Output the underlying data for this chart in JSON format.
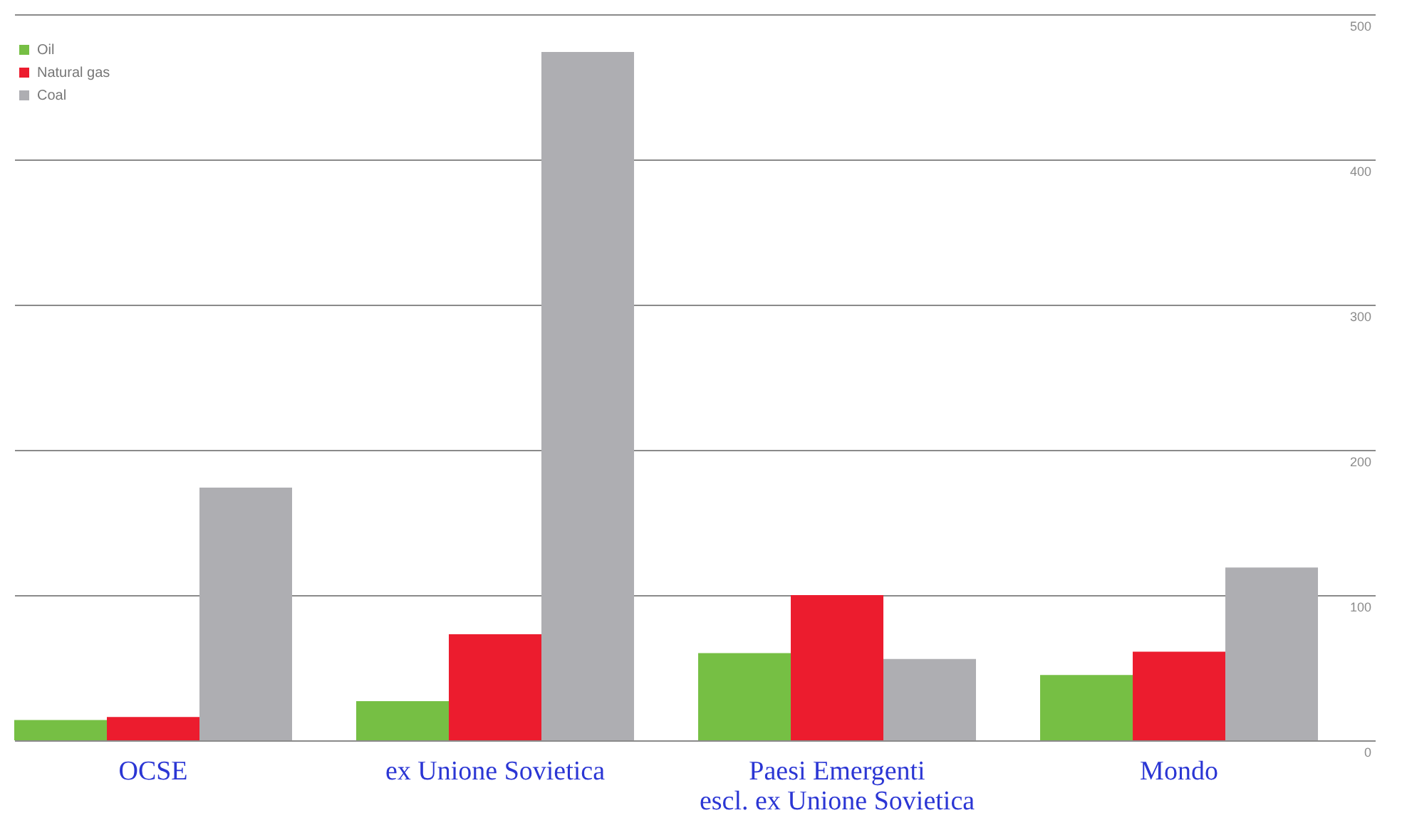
{
  "chart_data": {
    "type": "bar",
    "categories": [
      "OCSE",
      "ex Unione Sovietica",
      "Paesi Emergenti\nescl. ex Unione Sovietica",
      "Mondo"
    ],
    "series": [
      {
        "name": "Oil",
        "color": "#76bf44",
        "values": [
          14,
          27,
          60,
          45
        ]
      },
      {
        "name": "Natural gas",
        "color": "#ec1c2e",
        "values": [
          16,
          73,
          100,
          61
        ]
      },
      {
        "name": "Coal",
        "color": "#aeaeb2",
        "values": [
          174,
          474,
          56,
          119
        ]
      }
    ],
    "ylim": [
      0,
      500
    ],
    "yticks": [
      0,
      100,
      200,
      300,
      400,
      500
    ],
    "grid": "y",
    "legend": "top left"
  }
}
